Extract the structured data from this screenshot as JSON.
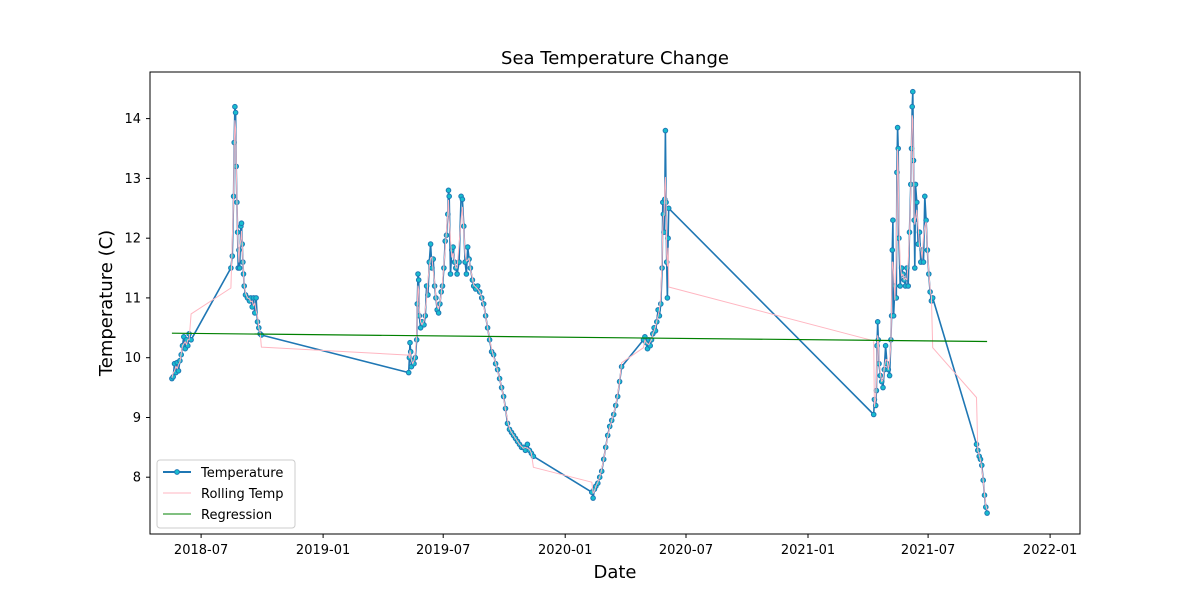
{
  "chart_data": {
    "type": "line",
    "title": "Sea Temperature Change",
    "xlabel": "Date",
    "ylabel": "Temperature (C)",
    "xlim": [
      "2018-04-15",
      "2022-02-15"
    ],
    "ylim": [
      7.05,
      14.78
    ],
    "x_ticks": [
      "2018-07-01",
      "2019-01-01",
      "2019-07-01",
      "2020-01-01",
      "2020-07-01",
      "2021-01-01",
      "2021-07-01",
      "2022-01-01"
    ],
    "x_tick_labels": [
      "2018-07",
      "2019-01",
      "2019-07",
      "2020-01",
      "2020-07",
      "2021-01",
      "2021-07",
      "2022-01"
    ],
    "y_ticks": [
      8,
      9,
      10,
      11,
      12,
      13,
      14
    ],
    "y_tick_labels": [
      "8",
      "9",
      "10",
      "11",
      "12",
      "13",
      "14"
    ],
    "grid": false,
    "legend": {
      "placement": "lower-left",
      "entries": [
        "Temperature",
        "Rolling Temp",
        "Regression"
      ]
    },
    "colors": {
      "temperature": "#1f77b4",
      "marker_face": "#17becf",
      "rolling": "#ffb6c1",
      "regression": "#008000"
    },
    "series": [
      {
        "name": "Temperature",
        "style": "line-with-markers",
        "points": [
          [
            "2018-05-18",
            9.65
          ],
          [
            "2018-05-20",
            9.68
          ],
          [
            "2018-05-22",
            9.9
          ],
          [
            "2018-05-24",
            9.75
          ],
          [
            "2018-05-26",
            9.92
          ],
          [
            "2018-05-28",
            9.78
          ],
          [
            "2018-05-30",
            9.95
          ],
          [
            "2018-06-01",
            10.05
          ],
          [
            "2018-06-03",
            10.2
          ],
          [
            "2018-06-05",
            10.35
          ],
          [
            "2018-06-07",
            10.15
          ],
          [
            "2018-06-09",
            10.3
          ],
          [
            "2018-06-11",
            10.2
          ],
          [
            "2018-06-13",
            10.4
          ],
          [
            "2018-06-16",
            10.3
          ],
          [
            "2018-08-15",
            11.5
          ],
          [
            "2018-08-17",
            11.7
          ],
          [
            "2018-08-19",
            12.7
          ],
          [
            "2018-08-20",
            13.6
          ],
          [
            "2018-08-21",
            14.2
          ],
          [
            "2018-08-22",
            14.1
          ],
          [
            "2018-08-23",
            13.2
          ],
          [
            "2018-08-24",
            12.6
          ],
          [
            "2018-08-25",
            12.1
          ],
          [
            "2018-08-26",
            11.5
          ],
          [
            "2018-08-27",
            11.8
          ],
          [
            "2018-08-28",
            11.5
          ],
          [
            "2018-08-30",
            12.2
          ],
          [
            "2018-08-31",
            12.25
          ],
          [
            "2018-09-01",
            11.9
          ],
          [
            "2018-09-02",
            11.6
          ],
          [
            "2018-09-03",
            11.4
          ],
          [
            "2018-09-04",
            11.2
          ],
          [
            "2018-09-06",
            11.05
          ],
          [
            "2018-09-09",
            11.0
          ],
          [
            "2018-09-12",
            10.95
          ],
          [
            "2018-09-14",
            11.0
          ],
          [
            "2018-09-16",
            10.85
          ],
          [
            "2018-09-18",
            11.0
          ],
          [
            "2018-09-20",
            10.75
          ],
          [
            "2018-09-22",
            11.0
          ],
          [
            "2018-09-24",
            10.6
          ],
          [
            "2018-09-26",
            10.5
          ],
          [
            "2018-09-28",
            10.4
          ],
          [
            "2018-09-30",
            10.38
          ],
          [
            "2019-05-10",
            9.75
          ],
          [
            "2019-05-11",
            10.0
          ],
          [
            "2019-05-12",
            10.25
          ],
          [
            "2019-05-13",
            10.1
          ],
          [
            "2019-05-14",
            9.85
          ],
          [
            "2019-05-16",
            9.95
          ],
          [
            "2019-05-18",
            9.9
          ],
          [
            "2019-05-20",
            10.0
          ],
          [
            "2019-05-22",
            10.3
          ],
          [
            "2019-05-23",
            10.9
          ],
          [
            "2019-05-24",
            11.4
          ],
          [
            "2019-05-25",
            11.3
          ],
          [
            "2019-05-26",
            10.7
          ],
          [
            "2019-05-28",
            10.5
          ],
          [
            "2019-05-30",
            10.6
          ],
          [
            "2019-06-02",
            10.55
          ],
          [
            "2019-06-04",
            10.7
          ],
          [
            "2019-06-06",
            11.2
          ],
          [
            "2019-06-08",
            11.05
          ],
          [
            "2019-06-10",
            11.6
          ],
          [
            "2019-06-12",
            11.9
          ],
          [
            "2019-06-14",
            11.5
          ],
          [
            "2019-06-16",
            11.65
          ],
          [
            "2019-06-18",
            11.2
          ],
          [
            "2019-06-20",
            11.0
          ],
          [
            "2019-06-22",
            10.8
          ],
          [
            "2019-06-24",
            10.75
          ],
          [
            "2019-06-26",
            10.9
          ],
          [
            "2019-06-28",
            11.1
          ],
          [
            "2019-06-30",
            11.2
          ],
          [
            "2019-07-02",
            11.5
          ],
          [
            "2019-07-04",
            11.95
          ],
          [
            "2019-07-06",
            12.05
          ],
          [
            "2019-07-08",
            12.4
          ],
          [
            "2019-07-09",
            12.8
          ],
          [
            "2019-07-10",
            12.7
          ],
          [
            "2019-07-12",
            11.4
          ],
          [
            "2019-07-14",
            11.8
          ],
          [
            "2019-07-16",
            11.85
          ],
          [
            "2019-07-18",
            11.6
          ],
          [
            "2019-07-20",
            11.5
          ],
          [
            "2019-07-22",
            11.4
          ],
          [
            "2019-07-25",
            11.6
          ],
          [
            "2019-07-28",
            12.7
          ],
          [
            "2019-07-30",
            12.65
          ],
          [
            "2019-08-01",
            12.2
          ],
          [
            "2019-08-03",
            11.6
          ],
          [
            "2019-08-05",
            11.4
          ],
          [
            "2019-08-07",
            11.85
          ],
          [
            "2019-08-09",
            11.65
          ],
          [
            "2019-08-11",
            11.5
          ],
          [
            "2019-08-14",
            11.3
          ],
          [
            "2019-08-16",
            11.2
          ],
          [
            "2019-08-19",
            11.15
          ],
          [
            "2019-08-22",
            11.2
          ],
          [
            "2019-08-25",
            11.1
          ],
          [
            "2019-08-28",
            11.0
          ],
          [
            "2019-08-31",
            10.9
          ],
          [
            "2019-09-03",
            10.7
          ],
          [
            "2019-09-06",
            10.5
          ],
          [
            "2019-09-09",
            10.3
          ],
          [
            "2019-09-12",
            10.1
          ],
          [
            "2019-09-15",
            10.05
          ],
          [
            "2019-09-18",
            9.9
          ],
          [
            "2019-09-21",
            9.8
          ],
          [
            "2019-09-24",
            9.65
          ],
          [
            "2019-09-27",
            9.5
          ],
          [
            "2019-09-30",
            9.35
          ],
          [
            "2019-10-03",
            9.15
          ],
          [
            "2019-10-06",
            8.9
          ],
          [
            "2019-10-09",
            8.8
          ],
          [
            "2019-10-12",
            8.75
          ],
          [
            "2019-10-15",
            8.7
          ],
          [
            "2019-10-18",
            8.65
          ],
          [
            "2019-10-21",
            8.6
          ],
          [
            "2019-10-24",
            8.55
          ],
          [
            "2019-10-27",
            8.5
          ],
          [
            "2019-10-30",
            8.5
          ],
          [
            "2019-11-02",
            8.45
          ],
          [
            "2019-11-05",
            8.55
          ],
          [
            "2019-11-08",
            8.45
          ],
          [
            "2019-11-11",
            8.4
          ],
          [
            "2019-11-14",
            8.35
          ],
          [
            "2020-02-10",
            7.75
          ],
          [
            "2020-02-12",
            7.65
          ],
          [
            "2020-02-14",
            7.8
          ],
          [
            "2020-02-16",
            7.85
          ],
          [
            "2020-02-19",
            7.9
          ],
          [
            "2020-02-22",
            8.0
          ],
          [
            "2020-02-25",
            8.1
          ],
          [
            "2020-02-28",
            8.3
          ],
          [
            "2020-03-02",
            8.5
          ],
          [
            "2020-03-05",
            8.7
          ],
          [
            "2020-03-08",
            8.85
          ],
          [
            "2020-03-11",
            8.95
          ],
          [
            "2020-03-14",
            9.05
          ],
          [
            "2020-03-17",
            9.2
          ],
          [
            "2020-03-20",
            9.35
          ],
          [
            "2020-03-23",
            9.6
          ],
          [
            "2020-03-26",
            9.85
          ],
          [
            "2020-04-28",
            10.3
          ],
          [
            "2020-04-30",
            10.35
          ],
          [
            "2020-05-02",
            10.25
          ],
          [
            "2020-05-04",
            10.15
          ],
          [
            "2020-05-06",
            10.3
          ],
          [
            "2020-05-08",
            10.2
          ],
          [
            "2020-05-10",
            10.3
          ],
          [
            "2020-05-12",
            10.4
          ],
          [
            "2020-05-14",
            10.5
          ],
          [
            "2020-05-16",
            10.45
          ],
          [
            "2020-05-18",
            10.6
          ],
          [
            "2020-05-20",
            10.8
          ],
          [
            "2020-05-22",
            10.7
          ],
          [
            "2020-05-24",
            10.9
          ],
          [
            "2020-05-26",
            11.5
          ],
          [
            "2020-05-27",
            12.6
          ],
          [
            "2020-05-28",
            12.4
          ],
          [
            "2020-05-29",
            12.1
          ],
          [
            "2020-05-30",
            12.65
          ],
          [
            "2020-05-31",
            13.8
          ],
          [
            "2020-06-01",
            12.6
          ],
          [
            "2020-06-02",
            11.6
          ],
          [
            "2020-06-03",
            11.0
          ],
          [
            "2020-06-04",
            12.0
          ],
          [
            "2020-06-05",
            12.5
          ],
          [
            "2021-04-10",
            9.05
          ],
          [
            "2021-04-11",
            9.3
          ],
          [
            "2021-04-13",
            9.2
          ],
          [
            "2021-04-14",
            9.45
          ],
          [
            "2021-04-15",
            10.2
          ],
          [
            "2021-04-16",
            10.6
          ],
          [
            "2021-04-17",
            10.3
          ],
          [
            "2021-04-18",
            9.9
          ],
          [
            "2021-04-20",
            9.7
          ],
          [
            "2021-04-22",
            9.6
          ],
          [
            "2021-04-24",
            9.5
          ],
          [
            "2021-04-26",
            9.8
          ],
          [
            "2021-04-28",
            10.2
          ],
          [
            "2021-04-30",
            9.9
          ],
          [
            "2021-05-02",
            9.8
          ],
          [
            "2021-05-04",
            9.7
          ],
          [
            "2021-05-06",
            10.3
          ],
          [
            "2021-05-07",
            10.7
          ],
          [
            "2021-05-08",
            11.8
          ],
          [
            "2021-05-09",
            12.3
          ],
          [
            "2021-05-10",
            10.7
          ],
          [
            "2021-05-12",
            11.2
          ],
          [
            "2021-05-14",
            11.0
          ],
          [
            "2021-05-15",
            13.1
          ],
          [
            "2021-05-16",
            13.85
          ],
          [
            "2021-05-17",
            13.5
          ],
          [
            "2021-05-18",
            12.0
          ],
          [
            "2021-05-20",
            11.2
          ],
          [
            "2021-05-22",
            11.5
          ],
          [
            "2021-05-24",
            11.4
          ],
          [
            "2021-05-26",
            11.3
          ],
          [
            "2021-05-28",
            11.2
          ],
          [
            "2021-05-30",
            11.5
          ],
          [
            "2021-06-01",
            11.2
          ],
          [
            "2021-06-03",
            12.1
          ],
          [
            "2021-06-05",
            12.9
          ],
          [
            "2021-06-06",
            13.5
          ],
          [
            "2021-06-07",
            14.2
          ],
          [
            "2021-06-08",
            14.45
          ],
          [
            "2021-06-09",
            13.3
          ],
          [
            "2021-06-10",
            12.3
          ],
          [
            "2021-06-11",
            11.5
          ],
          [
            "2021-06-12",
            12.9
          ],
          [
            "2021-06-14",
            12.6
          ],
          [
            "2021-06-16",
            11.9
          ],
          [
            "2021-06-18",
            12.1
          ],
          [
            "2021-06-20",
            11.6
          ],
          [
            "2021-06-22",
            11.8
          ],
          [
            "2021-06-24",
            11.6
          ],
          [
            "2021-06-26",
            12.7
          ],
          [
            "2021-06-28",
            12.3
          ],
          [
            "2021-06-30",
            11.8
          ],
          [
            "2021-07-02",
            11.4
          ],
          [
            "2021-07-04",
            11.1
          ],
          [
            "2021-07-06",
            10.95
          ],
          [
            "2021-07-08",
            11.0
          ],
          [
            "2021-09-12",
            8.55
          ],
          [
            "2021-09-14",
            8.45
          ],
          [
            "2021-09-16",
            8.35
          ],
          [
            "2021-09-18",
            8.3
          ],
          [
            "2021-09-20",
            8.2
          ],
          [
            "2021-09-22",
            7.95
          ],
          [
            "2021-09-24",
            7.7
          ],
          [
            "2021-09-26",
            7.5
          ],
          [
            "2021-09-28",
            7.4
          ]
        ]
      },
      {
        "name": "Rolling Temp",
        "style": "line"
      },
      {
        "name": "Regression",
        "style": "line",
        "points": [
          [
            "2018-05-18",
            10.41
          ],
          [
            "2021-09-28",
            10.27
          ]
        ]
      }
    ]
  }
}
